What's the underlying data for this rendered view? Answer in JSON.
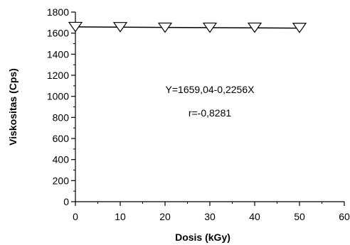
{
  "chart_data": {
    "type": "line",
    "title": "",
    "xlabel": "Dosis (kGy)",
    "ylabel": "Viskositas (Cps)",
    "xlim": [
      0,
      60
    ],
    "ylim": [
      0,
      1800
    ],
    "x_ticks": [
      "0",
      "10",
      "20",
      "30",
      "40",
      "50",
      "60"
    ],
    "y_ticks": [
      "0",
      "200",
      "400",
      "600",
      "800",
      "1000",
      "1200",
      "1400",
      "1600",
      "1800"
    ],
    "grid": false,
    "legend": "none",
    "marker": "open-down-triangle",
    "series": [
      {
        "x": [
          0,
          10,
          20,
          30,
          40,
          50
        ],
        "y": [
          1659,
          1657,
          1652,
          1652,
          1652,
          1650
        ]
      }
    ],
    "fit_line": {
      "x": [
        0,
        50
      ],
      "y": [
        1659.04,
        1647.76
      ]
    },
    "annotations": [
      {
        "text": "Y=1659,04-0,2256X",
        "x": 30,
        "y": 1030
      },
      {
        "text": "r=-0,8281",
        "x": 30,
        "y": 810
      }
    ]
  }
}
